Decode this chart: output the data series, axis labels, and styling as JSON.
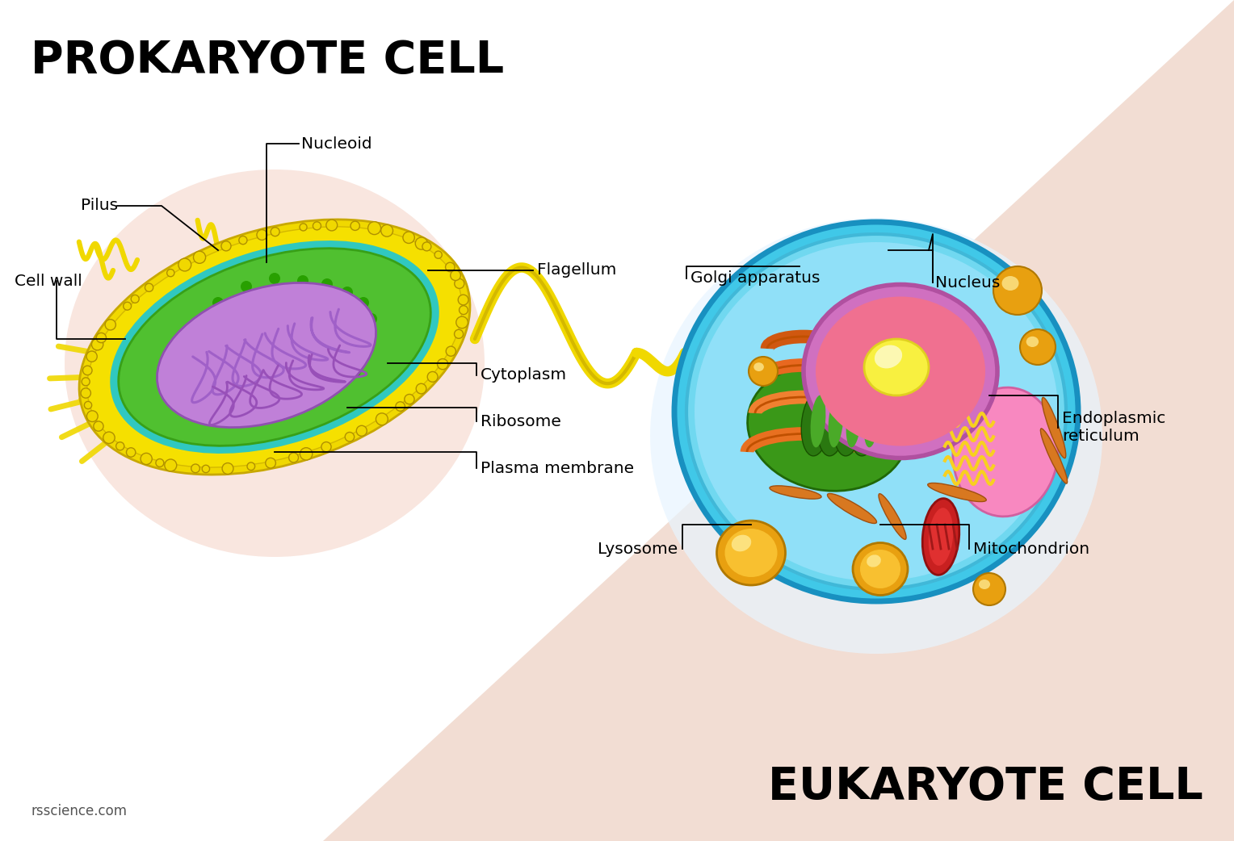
{
  "bg_color": "#ffffff",
  "diagonal_color": "#f0d8cc",
  "prokaryote_title": "PROKARYOTE CELL",
  "eukaryote_title": "EUKARYOTE CELL",
  "watermark": "rsscience.com",
  "pcx": 0.255,
  "pcy": 0.535,
  "ecx": 0.755,
  "ecy": 0.48,
  "label_fs": 14.5,
  "title_fs": 40
}
